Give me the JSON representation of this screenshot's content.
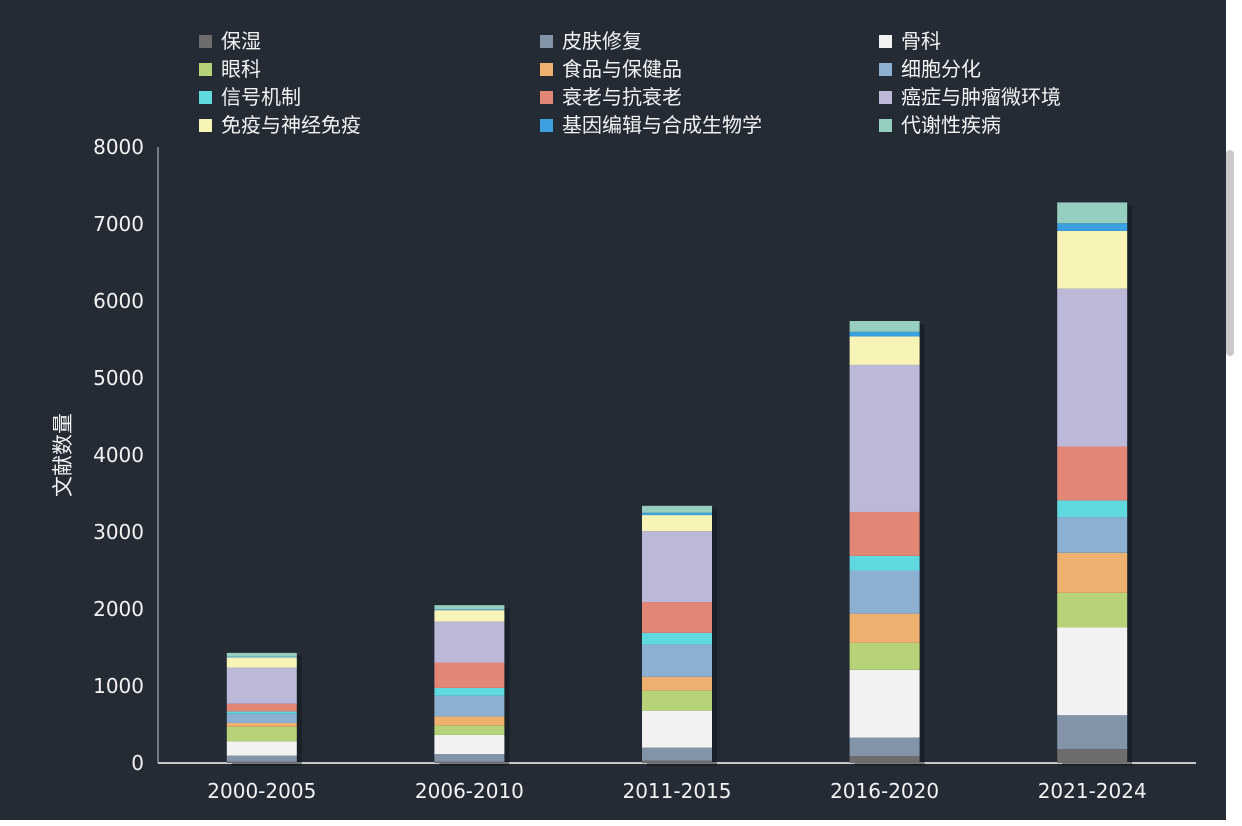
{
  "chart_data": {
    "type": "bar",
    "stacked": true,
    "categories": [
      "2000-2005",
      "2006-2010",
      "2011-2015",
      "2016-2020",
      "2021-2024"
    ],
    "ylabel": "文献数量",
    "ylim": [
      0,
      8000
    ],
    "yticks": [
      0,
      1000,
      2000,
      3000,
      4000,
      5000,
      6000,
      7000,
      8000
    ],
    "grid": false,
    "legend_position": "top",
    "series": [
      {
        "name": "保湿",
        "color": "#6e6c6d",
        "values": [
          15,
          15,
          30,
          90,
          180
        ]
      },
      {
        "name": "皮肤修复",
        "color": "#8494a8",
        "values": [
          80,
          100,
          170,
          240,
          440
        ]
      },
      {
        "name": "骨科",
        "color": "#f2f2f2",
        "values": [
          185,
          250,
          480,
          880,
          1140
        ]
      },
      {
        "name": "眼科",
        "color": "#b7d37a",
        "values": [
          190,
          120,
          260,
          350,
          450
        ]
      },
      {
        "name": "食品与保健品",
        "color": "#edb06e",
        "values": [
          50,
          120,
          180,
          380,
          520
        ]
      },
      {
        "name": "细胞分化",
        "color": "#8bb0d2",
        "values": [
          120,
          270,
          420,
          560,
          460
        ]
      },
      {
        "name": "信号机制",
        "color": "#5fd8df",
        "values": [
          30,
          100,
          150,
          190,
          220
        ]
      },
      {
        "name": "衰老与抗衰老",
        "color": "#e28676",
        "values": [
          100,
          330,
          400,
          570,
          700
        ]
      },
      {
        "name": "癌症与肿瘤微环境",
        "color": "#bbb8d8",
        "values": [
          470,
          530,
          920,
          1910,
          2050
        ]
      },
      {
        "name": "免疫与神经免疫",
        "color": "#f8f4b8",
        "values": [
          130,
          150,
          210,
          370,
          750
        ]
      },
      {
        "name": "基因编辑与合成生物学",
        "color": "#3aa0e0",
        "values": [
          10,
          10,
          30,
          60,
          100
        ]
      },
      {
        "name": "代谢性疾病",
        "color": "#96cfc0",
        "values": [
          50,
          55,
          90,
          140,
          270
        ]
      }
    ]
  }
}
